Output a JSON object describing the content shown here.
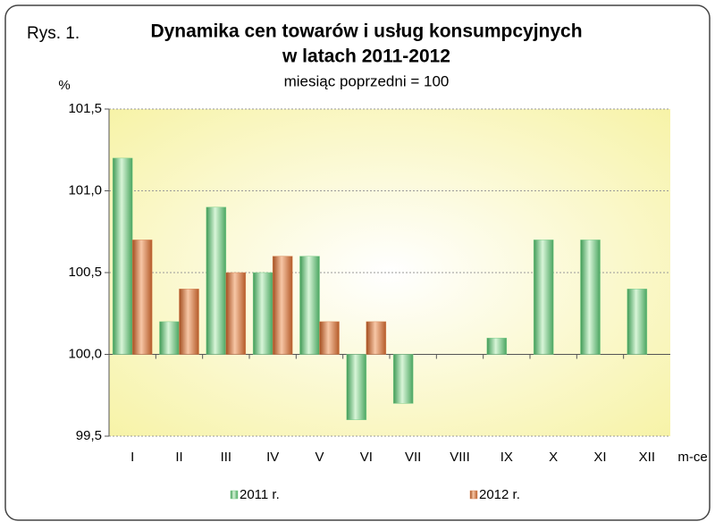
{
  "chart_data": {
    "type": "bar",
    "figure_label": "Rys. 1.",
    "title": [
      "Dynamika cen towarów i usług konsumpcyjnych",
      "w latach 2011-2012"
    ],
    "subtitle": "miesiąc poprzedni = 100",
    "y_label": "%",
    "x_label": "m-ce",
    "categories": [
      "I",
      "II",
      "III",
      "IV",
      "V",
      "VI",
      "VII",
      "VIII",
      "IX",
      "X",
      "XI",
      "XII"
    ],
    "series": [
      {
        "name": "2011 r.",
        "color": "#7ccf8a",
        "values": [
          101.2,
          100.2,
          100.9,
          100.5,
          100.6,
          99.6,
          99.7,
          100.0,
          100.1,
          100.7,
          100.7,
          100.4
        ]
      },
      {
        "name": "2012 r.",
        "color": "#d98a5a",
        "values": [
          100.7,
          100.4,
          100.5,
          100.6,
          100.2,
          100.2,
          null,
          null,
          null,
          null,
          null,
          null
        ]
      }
    ],
    "ylim": [
      99.5,
      101.5
    ],
    "yticks": [
      {
        "value": 99.5,
        "label": "99,5"
      },
      {
        "value": 100,
        "label": "100,0"
      },
      {
        "value": 100.5,
        "label": "100,5"
      },
      {
        "value": 101,
        "label": "101,0"
      },
      {
        "value": 101.5,
        "label": "101,5"
      }
    ],
    "base": 100,
    "grid": true,
    "legend": "bottom"
  }
}
